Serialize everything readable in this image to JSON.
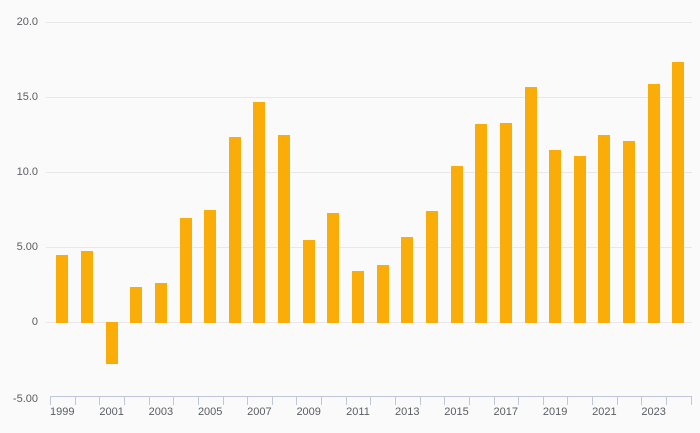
{
  "chart_data": {
    "type": "bar",
    "x": [
      1999,
      2000,
      2001,
      2002,
      2003,
      2004,
      2005,
      2006,
      2007,
      2008,
      2009,
      2010,
      2011,
      2012,
      2013,
      2014,
      2015,
      2016,
      2017,
      2018,
      2019,
      2020,
      2021,
      2022,
      2023,
      2024
    ],
    "values": [
      4.45,
      4.75,
      -2.7,
      2.35,
      2.6,
      6.95,
      7.45,
      12.35,
      14.65,
      12.45,
      5.5,
      7.3,
      3.4,
      3.8,
      5.7,
      7.4,
      10.4,
      13.2,
      13.25,
      15.7,
      11.45,
      11.1,
      12.5,
      12.1,
      15.9,
      17.35
    ],
    "ylim": [
      -5,
      20
    ],
    "yticks": [
      {
        "value": 20,
        "label": "20.0"
      },
      {
        "value": 15,
        "label": "15.0"
      },
      {
        "value": 10,
        "label": "10.0"
      },
      {
        "value": 5,
        "label": "5.00"
      },
      {
        "value": 0,
        "label": "0"
      },
      {
        "value": -5,
        "label": "-5.00"
      }
    ],
    "xtick_labels": [
      "1999",
      "2001",
      "2003",
      "2005",
      "2007",
      "2009",
      "2011",
      "2013",
      "2015",
      "2017",
      "2019",
      "2021",
      "2023"
    ],
    "grid": "horizontal",
    "legend": "none",
    "colors": {
      "bar": "#FAAD08",
      "background": "#FAFAFA",
      "gridline": "#E8E8E8",
      "axis": "#BFC8DB",
      "label_text": "#5A5D62"
    }
  }
}
